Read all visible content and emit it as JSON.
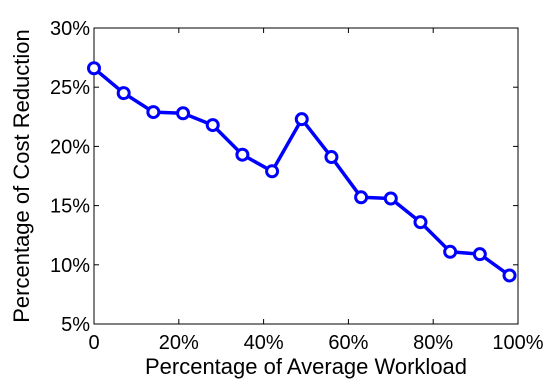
{
  "chart_data": {
    "type": "line",
    "xlabel": "Percentage of Average Workload",
    "ylabel": "Percentage of Cost Reduction",
    "xlim": [
      0,
      100
    ],
    "ylim": [
      5,
      30
    ],
    "xticks": [
      0,
      20,
      40,
      60,
      80,
      100
    ],
    "xtick_labels": [
      "0",
      "20%",
      "40%",
      "60%",
      "80%",
      "100%"
    ],
    "yticks": [
      5,
      10,
      15,
      20,
      25,
      30
    ],
    "ytick_labels": [
      "5%",
      "10%",
      "15%",
      "20%",
      "25%",
      "30%"
    ],
    "grid": false,
    "series": [
      {
        "color": "#0000ff",
        "marker": "circle",
        "x": [
          0,
          7,
          14,
          21,
          28,
          35,
          42,
          49,
          56,
          63,
          70,
          77,
          84,
          91,
          98
        ],
        "y": [
          26.6,
          24.5,
          22.9,
          22.8,
          21.8,
          19.3,
          17.9,
          22.3,
          19.1,
          15.7,
          15.6,
          13.6,
          11.1,
          10.9,
          9.1
        ]
      }
    ]
  }
}
